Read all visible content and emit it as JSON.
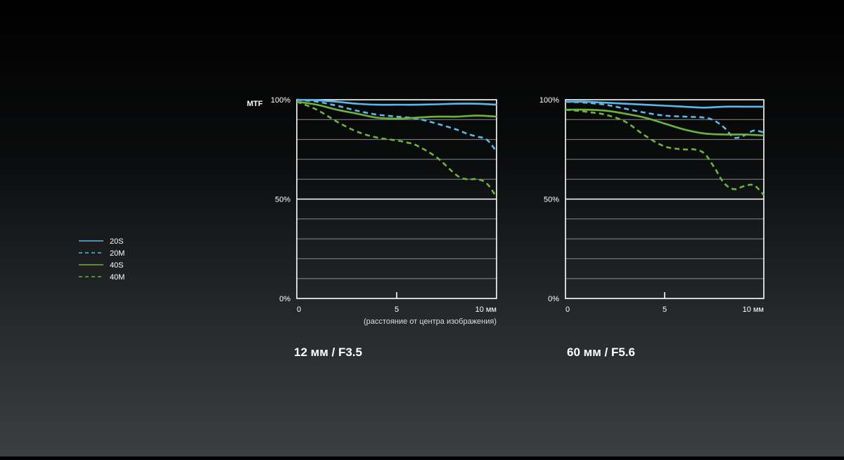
{
  "legend": [
    {
      "label": "20S",
      "color": "#5bb8e8",
      "dash": false
    },
    {
      "label": "20M",
      "color": "#5bb8e8",
      "dash": true
    },
    {
      "label": "40S",
      "color": "#6db33f",
      "dash": false
    },
    {
      "label": "40M",
      "color": "#6db33f",
      "dash": true
    }
  ],
  "mtf_label": "MTF",
  "x_axis_note": "(расстояние от центра изображения)",
  "chart_data": [
    {
      "type": "line",
      "title": "12 мм / F3.5",
      "xlim": [
        0,
        10
      ],
      "ylim": [
        0,
        100
      ],
      "y_tick_labels": [
        {
          "v": 100,
          "label": "100%"
        },
        {
          "v": 50,
          "label": "50%"
        },
        {
          "v": 0,
          "label": "0%"
        }
      ],
      "x_tick_labels": [
        {
          "v": 0,
          "label": "0"
        },
        {
          "v": 5,
          "label": "5"
        },
        {
          "v": 10,
          "label": "10 мм"
        }
      ],
      "grid": true,
      "series": [
        {
          "name": "20S",
          "color": "#5bb8e8",
          "dash": false,
          "x": [
            0,
            1,
            2,
            3,
            4,
            5,
            6,
            7,
            8,
            9,
            10
          ],
          "y": [
            100,
            99.7,
            99,
            98,
            97.5,
            97.5,
            97.5,
            97.7,
            98,
            98,
            97.5
          ]
        },
        {
          "name": "20M",
          "color": "#5bb8e8",
          "dash": true,
          "x": [
            0,
            1,
            2,
            3,
            4,
            5,
            6,
            7,
            8,
            8.5,
            9,
            9.5,
            10
          ],
          "y": [
            100,
            99,
            97,
            94.5,
            92.5,
            91.5,
            90.5,
            88,
            85,
            83,
            81.5,
            80,
            74
          ]
        },
        {
          "name": "40S",
          "color": "#6db33f",
          "dash": false,
          "x": [
            0,
            1,
            2,
            3,
            4,
            5,
            6,
            7,
            8,
            9,
            10
          ],
          "y": [
            99,
            97.5,
            95,
            93,
            91,
            90.5,
            91,
            91.5,
            91.5,
            92,
            91.5
          ]
        },
        {
          "name": "40M",
          "color": "#6db33f",
          "dash": true,
          "x": [
            0,
            1,
            2,
            3,
            4,
            5,
            5.5,
            6,
            7,
            8,
            8.5,
            9,
            9.5,
            10
          ],
          "y": [
            99,
            95,
            89,
            84,
            81,
            79.5,
            78.5,
            77,
            71,
            62,
            60,
            60,
            58,
            51
          ]
        }
      ]
    },
    {
      "type": "line",
      "title": "60 мм / F5.6",
      "xlim": [
        0,
        10
      ],
      "ylim": [
        0,
        100
      ],
      "y_tick_labels": [
        {
          "v": 100,
          "label": "100%"
        },
        {
          "v": 50,
          "label": "50%"
        },
        {
          "v": 0,
          "label": "0%"
        }
      ],
      "x_tick_labels": [
        {
          "v": 0,
          "label": "0"
        },
        {
          "v": 5,
          "label": "5"
        },
        {
          "v": 10,
          "label": "10 мм"
        }
      ],
      "grid": true,
      "series": [
        {
          "name": "20S",
          "color": "#5bb8e8",
          "dash": false,
          "x": [
            0,
            1,
            2,
            3,
            4,
            5,
            6,
            7,
            8,
            9,
            10
          ],
          "y": [
            99,
            99,
            98.5,
            98,
            97.5,
            97,
            96.5,
            96,
            96.5,
            96.5,
            96.5
          ]
        },
        {
          "name": "20M",
          "color": "#5bb8e8",
          "dash": true,
          "x": [
            0,
            1,
            2,
            3,
            4,
            5,
            6,
            7,
            7.5,
            8,
            8.5,
            9,
            9.5,
            10
          ],
          "y": [
            99,
            98.5,
            97.5,
            95.5,
            93.5,
            92,
            91.5,
            91,
            89.5,
            86,
            81,
            82,
            84.5,
            83.5
          ]
        },
        {
          "name": "40S",
          "color": "#6db33f",
          "dash": false,
          "x": [
            0,
            1,
            2,
            3,
            4,
            5,
            6,
            7,
            8,
            9,
            10
          ],
          "y": [
            95,
            95,
            94.5,
            93,
            91,
            88,
            85,
            83,
            82.5,
            82.5,
            82
          ]
        },
        {
          "name": "40M",
          "color": "#6db33f",
          "dash": true,
          "x": [
            0,
            1,
            2,
            3,
            4,
            5,
            6,
            6.5,
            7,
            7.5,
            8,
            8.5,
            9,
            9.5,
            10
          ],
          "y": [
            95,
            94,
            92.5,
            89,
            82,
            76.5,
            75,
            75,
            73,
            66,
            58,
            55,
            56.5,
            57,
            52
          ]
        }
      ]
    }
  ]
}
